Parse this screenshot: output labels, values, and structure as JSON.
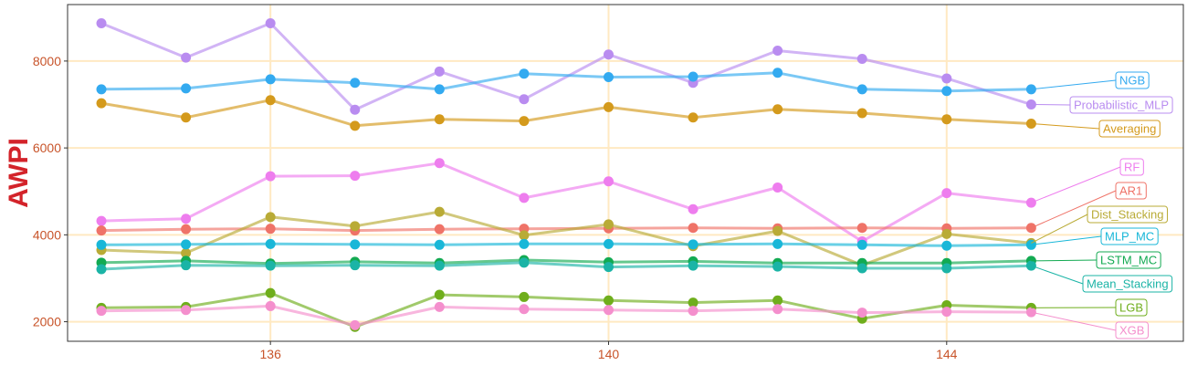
{
  "chart_data": {
    "type": "line",
    "title": "",
    "xlabel": "",
    "ylabel": "AWPI",
    "xlim": [
      133.6,
      146.8
    ],
    "ylim": [
      1550,
      9300
    ],
    "x": [
      134,
      135,
      136,
      137,
      138,
      139,
      140,
      141,
      142,
      143,
      144,
      145
    ],
    "xticks": [
      136,
      140,
      144
    ],
    "yticks": [
      2000,
      4000,
      6000,
      8000
    ],
    "xtick_labels": [
      "136",
      "140",
      "144"
    ],
    "ytick_labels": [
      "2000",
      "4000",
      "6000",
      "8000"
    ],
    "grid": true,
    "legend": "direct labels at right end of series",
    "colors": {
      "axis_text": "#c8542a",
      "ylabel": "#d3232a",
      "grid": "#ffe9c2",
      "background": "#ffffff"
    },
    "series": [
      {
        "name": "Probabilistic_MLP",
        "color": "#b98cf0",
        "values": [
          8870,
          8080,
          8870,
          6880,
          7760,
          7120,
          8150,
          7500,
          8240,
          8050,
          7600,
          7000
        ]
      },
      {
        "name": "NGB",
        "color": "#33aaf0",
        "values": [
          7350,
          7370,
          7580,
          7500,
          7350,
          7710,
          7630,
          7640,
          7730,
          7350,
          7310,
          7350
        ]
      },
      {
        "name": "Averaging",
        "color": "#d49a1c",
        "values": [
          7030,
          6700,
          7100,
          6510,
          6660,
          6620,
          6940,
          6700,
          6890,
          6800,
          6660,
          6560
        ]
      },
      {
        "name": "RF",
        "color": "#ee7dee",
        "values": [
          4320,
          4370,
          5350,
          5360,
          5650,
          4850,
          5230,
          4590,
          5090,
          3850,
          4960,
          4740
        ]
      },
      {
        "name": "AR1",
        "color": "#ef7368",
        "values": [
          4100,
          4130,
          4140,
          4100,
          4130,
          4140,
          4150,
          4160,
          4150,
          4160,
          4150,
          4160
        ]
      },
      {
        "name": "Dist_Stacking",
        "color": "#b9ab36",
        "values": [
          3650,
          3580,
          4410,
          4200,
          4530,
          3990,
          4240,
          3740,
          4090,
          3300,
          4020,
          3810
        ]
      },
      {
        "name": "MLP_MC",
        "color": "#19b7d8",
        "values": [
          3770,
          3780,
          3790,
          3780,
          3770,
          3790,
          3790,
          3780,
          3790,
          3770,
          3750,
          3770
        ]
      },
      {
        "name": "LSTM_MC",
        "color": "#13aa52",
        "values": [
          3360,
          3400,
          3340,
          3380,
          3350,
          3420,
          3370,
          3390,
          3350,
          3350,
          3350,
          3400
        ]
      },
      {
        "name": "Mean_Stacking",
        "color": "#1bb4a6",
        "values": [
          3210,
          3300,
          3290,
          3300,
          3290,
          3360,
          3260,
          3290,
          3270,
          3230,
          3230,
          3290
        ]
      },
      {
        "name": "LGB",
        "color": "#6fae1c",
        "values": [
          2320,
          2340,
          2660,
          1880,
          2620,
          2570,
          2490,
          2440,
          2490,
          2070,
          2380,
          2320
        ]
      },
      {
        "name": "XGB",
        "color": "#f48fcd",
        "values": [
          2250,
          2270,
          2360,
          1920,
          2340,
          2290,
          2270,
          2250,
          2290,
          2210,
          2230,
          2220
        ]
      }
    ]
  }
}
